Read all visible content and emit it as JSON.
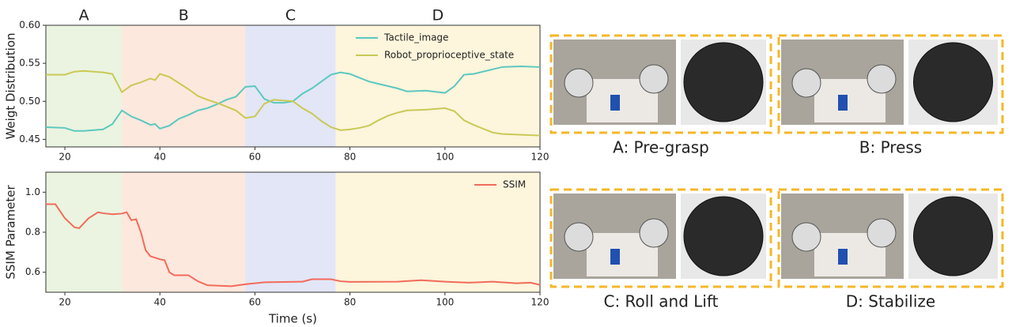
{
  "chart_data": [
    {
      "type": "line",
      "ylabel": "Weigt Distribution",
      "phases": [
        {
          "label": "A",
          "start": 16,
          "end": 32,
          "color": "#eaf4e0"
        },
        {
          "label": "B",
          "start": 32,
          "end": 58,
          "color": "#fde8dd"
        },
        {
          "label": "C",
          "start": 58,
          "end": 77,
          "color": "#e2e6f6"
        },
        {
          "label": "D",
          "start": 77,
          "end": 120,
          "color": "#fdf5dc"
        }
      ],
      "x": [
        16,
        20,
        22,
        24,
        28,
        30,
        32,
        34,
        36,
        38,
        39,
        40,
        42,
        44,
        46,
        48,
        50,
        52,
        54,
        56,
        58,
        60,
        62,
        64,
        66,
        68,
        70,
        72,
        74,
        76,
        78,
        80,
        82,
        84,
        86,
        88,
        90,
        92,
        96,
        100,
        102,
        104,
        106,
        110,
        112,
        116,
        120
      ],
      "series": [
        {
          "name": "Tactile_image",
          "color": "#5cc8bf",
          "values": [
            0.466,
            0.465,
            0.461,
            0.461,
            0.463,
            0.47,
            0.488,
            0.48,
            0.475,
            0.469,
            0.47,
            0.464,
            0.468,
            0.477,
            0.482,
            0.488,
            0.491,
            0.496,
            0.502,
            0.506,
            0.519,
            0.52,
            0.503,
            0.498,
            0.498,
            0.5,
            0.51,
            0.517,
            0.526,
            0.535,
            0.538,
            0.536,
            0.531,
            0.526,
            0.523,
            0.52,
            0.517,
            0.513,
            0.514,
            0.511,
            0.52,
            0.535,
            0.536,
            0.542,
            0.545,
            0.546,
            0.545
          ]
        },
        {
          "name": "Robot_proprioceptive_state",
          "color": "#c9c955",
          "values": [
            0.535,
            0.535,
            0.539,
            0.54,
            0.538,
            0.536,
            0.512,
            0.521,
            0.525,
            0.53,
            0.528,
            0.536,
            0.532,
            0.524,
            0.516,
            0.507,
            0.502,
            0.498,
            0.493,
            0.488,
            0.478,
            0.48,
            0.497,
            0.502,
            0.501,
            0.5,
            0.491,
            0.484,
            0.474,
            0.466,
            0.462,
            0.463,
            0.465,
            0.468,
            0.475,
            0.481,
            0.485,
            0.488,
            0.489,
            0.491,
            0.487,
            0.475,
            0.469,
            0.459,
            0.457,
            0.456,
            0.455
          ]
        }
      ],
      "xlim": [
        16,
        120
      ],
      "xticks": [
        20,
        40,
        60,
        80,
        100,
        120
      ],
      "ylim": [
        0.44,
        0.6
      ],
      "yticks": [
        {
          "value": 0.45,
          "label": "0.45"
        },
        {
          "value": 0.5,
          "label": "0.50"
        },
        0.55,
        {
          "value": 0.6,
          "label": "0.60"
        }
      ],
      "legend": "upper right"
    },
    {
      "type": "line",
      "ylabel": "SSIM Parameter",
      "xlabel": "Time (s)",
      "x": [
        16,
        18,
        20,
        22,
        23,
        25,
        27,
        28,
        30,
        32,
        33,
        34,
        35,
        36,
        37,
        38,
        40,
        41,
        42,
        43,
        46,
        48,
        50,
        55,
        58,
        62,
        70,
        72,
        76,
        78,
        80,
        90,
        95,
        100,
        105,
        110,
        115,
        118,
        120
      ],
      "series": [
        {
          "name": "SSIM",
          "color": "#f26b5b",
          "values": [
            0.94,
            0.94,
            0.87,
            0.825,
            0.82,
            0.87,
            0.9,
            0.895,
            0.89,
            0.893,
            0.9,
            0.86,
            0.865,
            0.8,
            0.71,
            0.68,
            0.665,
            0.66,
            0.6,
            0.585,
            0.585,
            0.555,
            0.535,
            0.53,
            0.54,
            0.55,
            0.553,
            0.565,
            0.565,
            0.555,
            0.552,
            0.553,
            0.56,
            0.553,
            0.548,
            0.553,
            0.545,
            0.548,
            0.537
          ]
        }
      ],
      "xlim": [
        16,
        120
      ],
      "xticks": [
        20,
        40,
        60,
        80,
        100,
        120
      ],
      "ylim": [
        0.5,
        1.1
      ],
      "yticks": [
        0.6,
        0.8,
        {
          "value": 1.0,
          "label": "1.0"
        }
      ],
      "legend": "upper right"
    }
  ],
  "panels": [
    {
      "caption": "A: Pre-grasp"
    },
    {
      "caption": "B: Press"
    },
    {
      "caption": "C: Roll and Lift"
    },
    {
      "caption": "D: Stabilize"
    }
  ]
}
